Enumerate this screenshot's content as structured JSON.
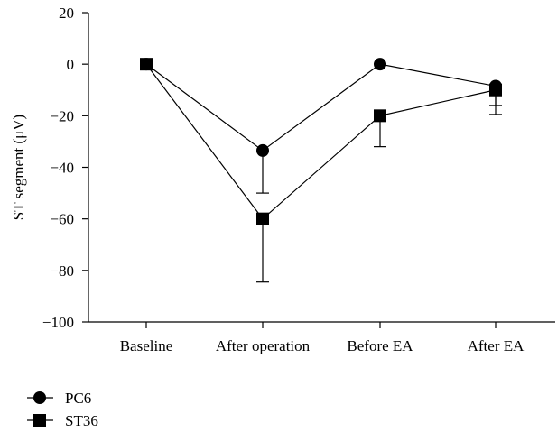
{
  "chart_data": {
    "type": "line",
    "title": "",
    "xlabel": "",
    "ylabel": "ST segment (μV)",
    "ylim": [
      -100,
      20
    ],
    "yticks": [
      20,
      0,
      -20,
      -40,
      -60,
      -80,
      -100
    ],
    "ytick_labels": [
      "20",
      "0",
      "−20",
      "−40",
      "−60",
      "−80",
      "−100"
    ],
    "categories": [
      "Baseline",
      "After operation",
      "Before EA",
      "After EA"
    ],
    "grid": false,
    "legend_position": "bottom-left",
    "series": [
      {
        "name": "PC6",
        "marker": "circle",
        "values": [
          0,
          -33.5,
          0,
          -8.5
        ],
        "error_low": [
          0,
          -50,
          0,
          -16
        ],
        "error_high": [
          0,
          -33.5,
          0,
          -8.5
        ],
        "color": "#000000"
      },
      {
        "name": "ST36",
        "marker": "square",
        "values": [
          0,
          -60,
          -20,
          -10
        ],
        "error_low": [
          0,
          -84.5,
          -32,
          -19.5
        ],
        "error_high": [
          0,
          -60,
          -20,
          -10
        ],
        "color": "#000000"
      }
    ]
  }
}
